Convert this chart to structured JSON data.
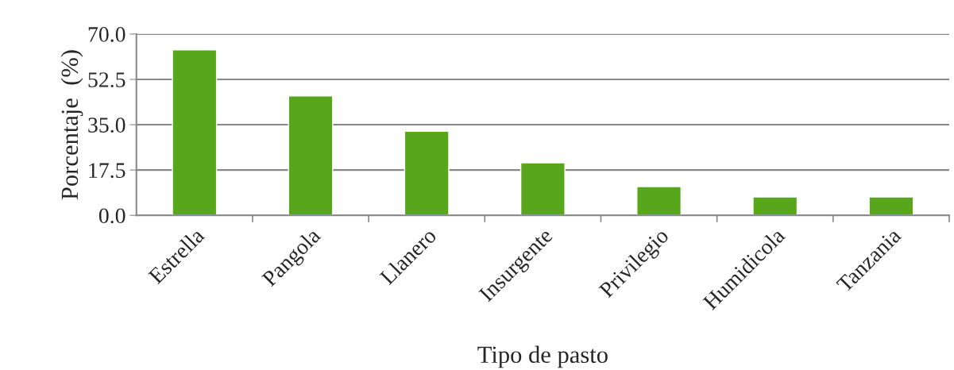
{
  "chart_data": {
    "type": "bar",
    "xlabel": "Tipo de pasto",
    "ylabel": "Porcentaje  (%)",
    "categories": [
      "Estrella",
      "Pangola",
      "Llanero",
      "Insurgente",
      "Privilegio",
      "Humidicola",
      "Tanzania"
    ],
    "values": [
      63.9,
      46.1,
      32.5,
      20.3,
      11.1,
      7.1,
      7.1
    ],
    "color": "#58a61c",
    "ylim": [
      0,
      70
    ],
    "yticks": [
      {
        "value": 0,
        "label": "0.0"
      },
      {
        "value": 17.5,
        "label": "17.5"
      },
      {
        "value": 35,
        "label": "35.0"
      },
      {
        "value": 52.5,
        "label": "52.5"
      },
      {
        "value": 70,
        "label": "70.0"
      }
    ],
    "grid": "y"
  }
}
